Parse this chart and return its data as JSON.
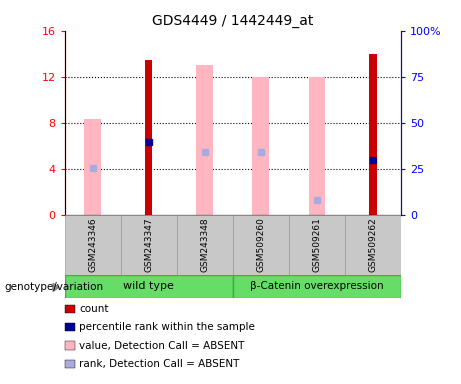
{
  "title": "GDS4449 / 1442449_at",
  "samples": [
    "GSM243346",
    "GSM243347",
    "GSM243348",
    "GSM509260",
    "GSM509261",
    "GSM509262"
  ],
  "red_bars": [
    null,
    13.5,
    null,
    null,
    null,
    14.0
  ],
  "pink_bars": [
    8.3,
    null,
    13.0,
    12.0,
    12.0,
    null
  ],
  "blue_markers_left": [
    null,
    6.3,
    null,
    null,
    null,
    4.8
  ],
  "light_blue_markers_left": [
    4.1,
    null,
    5.5,
    5.5,
    1.3,
    null
  ],
  "ylim_left": [
    0,
    16
  ],
  "ylim_right": [
    0,
    100
  ],
  "yticks_left": [
    0,
    4,
    8,
    12,
    16
  ],
  "yticks_right": [
    0,
    25,
    50,
    75,
    100
  ],
  "yticklabels_right": [
    "0",
    "25",
    "50",
    "75",
    "100%"
  ],
  "group_label": "genotype/variation",
  "wt_label": "wild type",
  "bc_label": "β-Catenin overexpression",
  "legend_items": [
    {
      "color": "#CC0000",
      "label": "count"
    },
    {
      "color": "#000099",
      "label": "percentile rank within the sample"
    },
    {
      "color": "#FFB6C1",
      "label": "value, Detection Call = ABSENT"
    },
    {
      "color": "#AAAADD",
      "label": "rank, Detection Call = ABSENT"
    }
  ],
  "bar_color_red": "#CC0000",
  "bar_color_pink": "#FFB6C1",
  "marker_color_blue": "#000099",
  "marker_color_lightblue": "#AAAADD",
  "label_box_bg": "#C8C8C8",
  "group_box_bg": "#66DD66",
  "group_box_edge": "#44AA44"
}
